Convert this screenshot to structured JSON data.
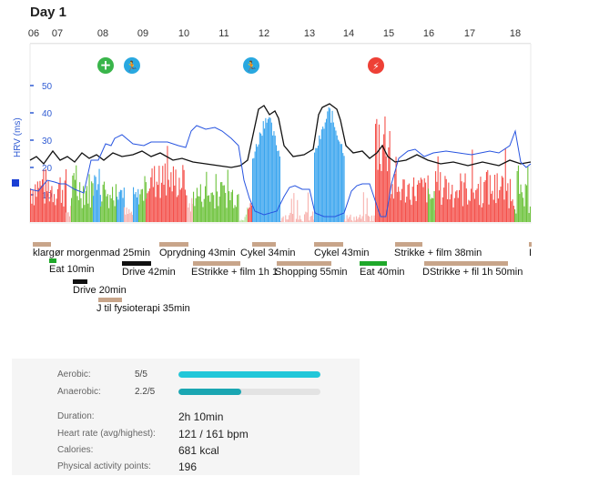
{
  "day_title": "Day 1",
  "hours": [
    "06",
    "07",
    "08",
    "09",
    "10",
    "11",
    "12",
    "13",
    "14",
    "15",
    "16",
    "17",
    "18"
  ],
  "chart": {
    "ylabel": "HRV (ms)",
    "ticks": [
      "50",
      "40",
      "30",
      "20",
      "10"
    ],
    "icons": [
      {
        "name": "plus-icon",
        "glyph": "+",
        "color": "#39b54a"
      },
      {
        "name": "running-icon",
        "glyph": "🏃",
        "color": "#29a8e0"
      },
      {
        "name": "running-icon",
        "glyph": "🏃",
        "color": "#29a8e0"
      },
      {
        "name": "lightning-icon",
        "glyph": "⚡",
        "color": "#ee4036"
      }
    ]
  },
  "activities": [
    {
      "label": "klargør morgenmad 25min",
      "color": "#c8a58a"
    },
    {
      "label": "Eat 10min",
      "color": "#1fa82a"
    },
    {
      "label": "Drive 20min",
      "color": "#111111"
    },
    {
      "label": "J til fysioterapi 35min",
      "color": "#c8a58a"
    },
    {
      "label": "Drive 42min",
      "color": "#111111"
    },
    {
      "label": "Oprydning 43min",
      "color": "#c8a58a"
    },
    {
      "label": "EStrikke + film 1h 1",
      "color": "#c8a58a"
    },
    {
      "label": "Cykel 34min",
      "color": "#c8a58a"
    },
    {
      "label": "Shopping 55min",
      "color": "#c8a58a"
    },
    {
      "label": "Cykel 43min",
      "color": "#c8a58a"
    },
    {
      "label": "Eat 40min",
      "color": "#1fa82a"
    },
    {
      "label": "Strikke + film 38min",
      "color": "#c8a58a"
    },
    {
      "label": "DStrikke + fil 1h 50min",
      "color": "#c8a58a"
    },
    {
      "label": "I",
      "color": "#c8a58a"
    }
  ],
  "summary": {
    "aerobic": {
      "label": "Aerobic:",
      "ratio": "5/5",
      "fraction": 1.0,
      "color": "#22c7d9"
    },
    "anaerobic": {
      "label": "Anaerobic:",
      "ratio": "2.2/5",
      "fraction": 0.44,
      "color": "#1aa6b2"
    },
    "duration": {
      "label": "Duration:",
      "value": "2h 10min"
    },
    "heart_rate": {
      "label": "Heart rate (avg/highest):",
      "value": "121 / 161 bpm"
    },
    "calories": {
      "label": "Calories:",
      "value": "681 kcal"
    },
    "activity_points": {
      "label": "Physical activity points:",
      "value": "196"
    }
  }
}
